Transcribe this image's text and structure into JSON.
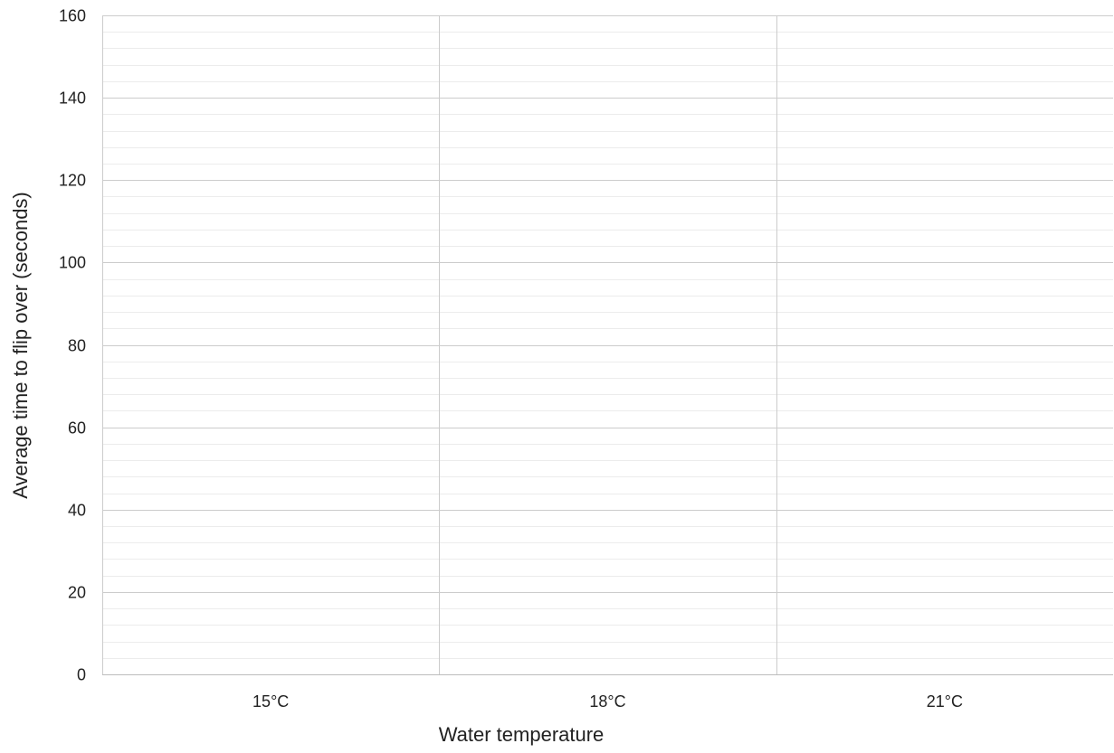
{
  "chart_data": {
    "type": "bar",
    "title": "",
    "xlabel": "Water temperature",
    "ylabel": "Average time to flip over (seconds)",
    "categories": [
      "15°C",
      "18°C",
      "21°C"
    ],
    "values": [
      null,
      null,
      null
    ],
    "ylim": [
      0,
      160
    ],
    "y_ticks": [
      "0",
      "20",
      "40",
      "60",
      "80",
      "100",
      "120",
      "140",
      "160"
    ],
    "y_major_step": 20,
    "y_minor_step": 4,
    "grid": true,
    "legend": "none",
    "colors": {
      "major_grid": "#cccccc",
      "minor_grid": "#ececec",
      "axis": "#bdbdbd",
      "text": "#222222"
    }
  }
}
